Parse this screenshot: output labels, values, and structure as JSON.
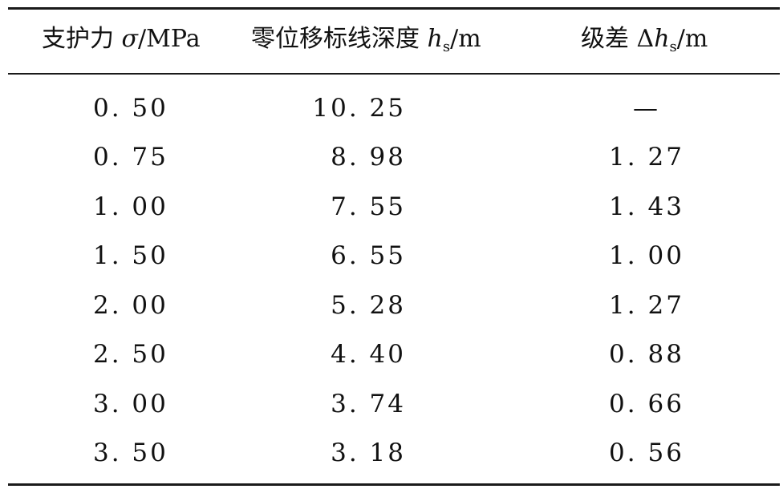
{
  "table": {
    "headers": {
      "col1_prefix": "支护力 ",
      "col1_symbol": "σ",
      "col1_unit": "/MPa",
      "col2_prefix": "零位移标线深度 ",
      "col2_symbol": "h",
      "col2_sub": "s",
      "col2_unit": "/m",
      "col3_prefix": "级差 Δ",
      "col3_symbol": "h",
      "col3_sub": "s",
      "col3_unit": "/m"
    },
    "rows": [
      {
        "sigma": "0. 50",
        "hs": "10. 25",
        "dhs": "—"
      },
      {
        "sigma": "0. 75",
        "hs": "8. 98",
        "dhs": "1. 27"
      },
      {
        "sigma": "1. 00",
        "hs": "7. 55",
        "dhs": "1. 43"
      },
      {
        "sigma": "1. 50",
        "hs": "6. 55",
        "dhs": "1. 00"
      },
      {
        "sigma": "2. 00",
        "hs": "5. 28",
        "dhs": "1. 27"
      },
      {
        "sigma": "2. 50",
        "hs": "4. 40",
        "dhs": "0. 88"
      },
      {
        "sigma": "3. 00",
        "hs": "3. 74",
        "dhs": "0. 66"
      },
      {
        "sigma": "3. 50",
        "hs": "3. 18",
        "dhs": "0. 56"
      }
    ]
  }
}
